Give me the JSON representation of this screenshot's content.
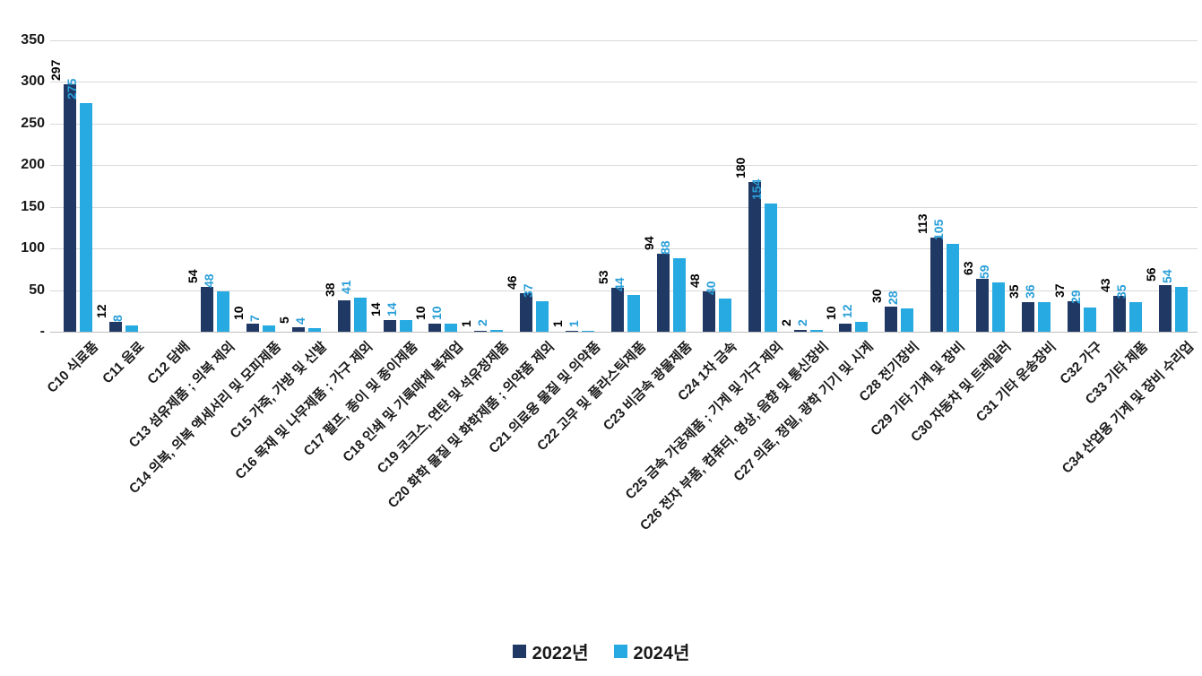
{
  "chart_data": {
    "type": "bar",
    "title": "",
    "categories": [
      "C10 식료품",
      "C11 음료",
      "C12 담배",
      "C13 섬유제품 ; 의복 제외",
      "C14 의복, 의복 액세서리 및 모피제품",
      "C15 가죽, 가방 및 신발",
      "C16 목재 및 나무제품 ; 가구 제외",
      "C17 펄프, 종이 및 종이제품",
      "C18 인쇄 및 기록매체 복제업",
      "C19 코크스, 연탄 및 석유정제품",
      "C20 화학 물질 및 화학제품 ; 의약품 제외",
      "C21 의료용 물질 및 의약품",
      "C22 고무 및 플라스틱제품",
      "C23 비금속 광물제품",
      "C24 1차 금속",
      "C25 금속 가공제품 ; 기계 및 가구 제외",
      "C26 전자 부품, 컴퓨터, 영상, 음향 및 통신장비",
      "C27 의료, 정밀, 광학 기기 및 시계",
      "C28 전기장비",
      "C29 기타 기계 및 장비",
      "C30 자동차 및 트레일러",
      "C31 기타 운송장비",
      "C32 가구",
      "C33 기타 제품",
      "C34 산업용 기계 및 장비 수리업"
    ],
    "series": [
      {
        "name": "2022년",
        "color": "#1f3864",
        "label_color": "#000000",
        "values": [
          297,
          12,
          0,
          54,
          10,
          5,
          38,
          14,
          10,
          1,
          46,
          1,
          53,
          94,
          48,
          180,
          2,
          10,
          30,
          113,
          63,
          35,
          37,
          43,
          56
        ]
      },
      {
        "name": "2024년",
        "color": "#27aae1",
        "label_color": "#2a9fd8",
        "values": [
          275,
          8,
          0,
          48,
          7,
          4,
          41,
          14,
          10,
          2,
          37,
          1,
          44,
          88,
          40,
          154,
          2,
          12,
          28,
          105,
          59,
          36,
          29,
          35,
          54
        ]
      }
    ],
    "y_ticks": [
      "-",
      "50",
      "100",
      "150",
      "200",
      "250",
      "300",
      "350"
    ],
    "y_tick_values": [
      0,
      50,
      100,
      150,
      200,
      250,
      300,
      350
    ],
    "ylim": [
      0,
      350
    ],
    "grid": true,
    "legend_position": "bottom",
    "gridline_color": "#d9d9d9",
    "axis_line_color": "#bfbfbf"
  }
}
